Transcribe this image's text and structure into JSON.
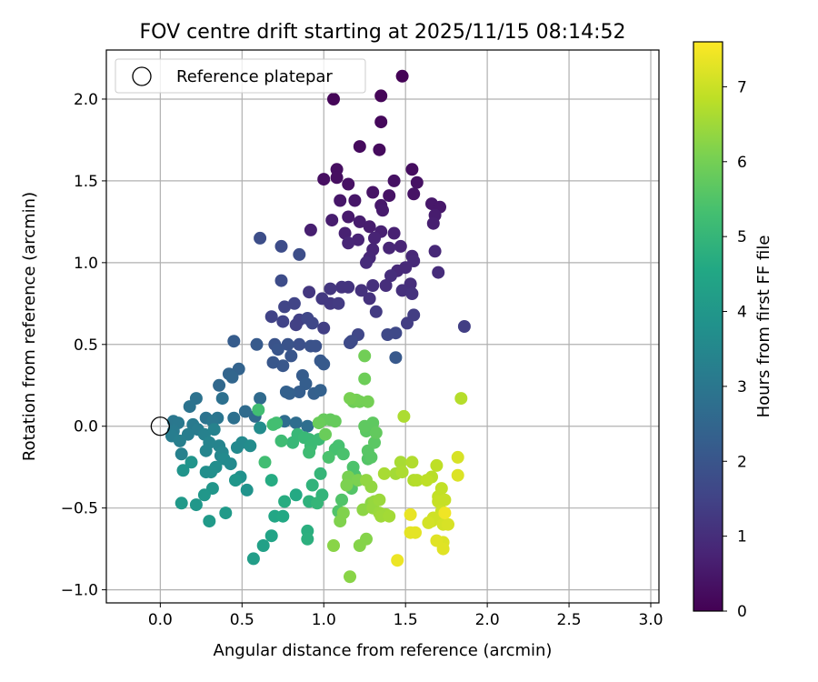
{
  "chart_data": {
    "type": "scatter",
    "title": "FOV centre drift starting at 2025/11/15 08:14:52",
    "xlabel": "Angular distance from reference (arcmin)",
    "ylabel": "Rotation from reference (arcmin)",
    "xlim": [
      -0.33,
      3.05
    ],
    "ylim": [
      -1.08,
      2.3
    ],
    "xticks": [
      0.0,
      0.5,
      1.0,
      1.5,
      2.0,
      2.5,
      3.0
    ],
    "xtick_labels": [
      "0.0",
      "0.5",
      "1.0",
      "1.5",
      "2.0",
      "2.5",
      "3.0"
    ],
    "yticks": [
      -1.0,
      -0.5,
      0.0,
      0.5,
      1.0,
      1.5,
      2.0
    ],
    "ytick_labels": [
      "−1.0",
      "−0.5",
      "0.0",
      "0.5",
      "1.0",
      "1.5",
      "2.0"
    ],
    "grid": true,
    "legend": {
      "position": "top-left",
      "entries": [
        "Reference platepar"
      ]
    },
    "reference_point": {
      "x": 0.0,
      "y": 0.0,
      "label": "Reference platepar"
    },
    "colorbar": {
      "label": "Hours from first FF file",
      "colormap": "viridis",
      "range": [
        0,
        7.6
      ],
      "ticks": [
        0,
        1,
        2,
        3,
        4,
        5,
        6,
        7
      ],
      "tick_labels": [
        "0",
        "1",
        "2",
        "3",
        "4",
        "5",
        "6",
        "7"
      ]
    },
    "points": [
      [
        1.48,
        2.14,
        0.05
      ],
      [
        1.06,
        2.0,
        0.1
      ],
      [
        1.35,
        2.02,
        0.1
      ],
      [
        1.35,
        1.86,
        0.15
      ],
      [
        1.34,
        1.69,
        0.2
      ],
      [
        1.22,
        1.71,
        0.2
      ],
      [
        1.54,
        1.57,
        0.25
      ],
      [
        1.08,
        1.57,
        0.3
      ],
      [
        1.0,
        1.51,
        0.3
      ],
      [
        1.08,
        1.52,
        0.3
      ],
      [
        1.15,
        1.48,
        0.35
      ],
      [
        1.43,
        1.5,
        0.35
      ],
      [
        1.57,
        1.49,
        0.35
      ],
      [
        1.3,
        1.43,
        0.4
      ],
      [
        1.4,
        1.41,
        0.4
      ],
      [
        1.55,
        1.42,
        0.4
      ],
      [
        1.1,
        1.38,
        0.45
      ],
      [
        1.19,
        1.38,
        0.45
      ],
      [
        1.35,
        1.35,
        0.5
      ],
      [
        1.66,
        1.36,
        0.5
      ],
      [
        1.71,
        1.34,
        0.5
      ],
      [
        1.36,
        1.32,
        0.55
      ],
      [
        1.15,
        1.28,
        0.55
      ],
      [
        1.05,
        1.26,
        0.6
      ],
      [
        1.22,
        1.25,
        0.6
      ],
      [
        1.28,
        1.22,
        0.6
      ],
      [
        1.68,
        1.29,
        0.6
      ],
      [
        1.67,
        1.24,
        0.65
      ],
      [
        0.92,
        1.2,
        0.65
      ],
      [
        1.13,
        1.18,
        0.7
      ],
      [
        1.35,
        1.19,
        0.7
      ],
      [
        1.43,
        1.18,
        0.7
      ],
      [
        1.31,
        1.15,
        0.75
      ],
      [
        1.47,
        1.1,
        0.75
      ],
      [
        1.21,
        1.14,
        0.75
      ],
      [
        1.15,
        1.12,
        0.8
      ],
      [
        1.3,
        1.08,
        0.8
      ],
      [
        1.4,
        1.09,
        0.8
      ],
      [
        1.54,
        1.04,
        0.85
      ],
      [
        1.68,
        1.07,
        0.85
      ],
      [
        1.28,
        1.03,
        0.85
      ],
      [
        1.55,
        1.01,
        0.9
      ],
      [
        1.45,
        0.95,
        0.9
      ],
      [
        1.5,
        0.97,
        0.9
      ],
      [
        1.7,
        0.94,
        0.95
      ],
      [
        1.26,
        1.0,
        0.95
      ],
      [
        1.41,
        0.92,
        1.0
      ],
      [
        1.53,
        0.87,
        1.0
      ],
      [
        1.38,
        0.86,
        1.0
      ],
      [
        1.3,
        0.86,
        1.05
      ],
      [
        1.48,
        0.83,
        1.05
      ],
      [
        1.54,
        0.81,
        1.1
      ],
      [
        1.23,
        0.83,
        1.1
      ],
      [
        1.28,
        0.78,
        1.1
      ],
      [
        1.11,
        0.85,
        1.15
      ],
      [
        1.15,
        0.85,
        1.15
      ],
      [
        1.04,
        0.84,
        1.2
      ],
      [
        0.91,
        0.82,
        1.2
      ],
      [
        0.99,
        0.78,
        1.25
      ],
      [
        1.04,
        0.75,
        1.25
      ],
      [
        1.09,
        0.75,
        1.3
      ],
      [
        1.32,
        0.7,
        1.3
      ],
      [
        1.55,
        0.68,
        1.35
      ],
      [
        1.51,
        0.63,
        1.35
      ],
      [
        1.86,
        0.61,
        1.4
      ],
      [
        1.0,
        0.6,
        1.4
      ],
      [
        0.85,
        0.65,
        1.45
      ],
      [
        0.83,
        0.62,
        1.45
      ],
      [
        0.75,
        0.64,
        1.5
      ],
      [
        0.68,
        0.67,
        1.5
      ],
      [
        0.76,
        0.73,
        1.55
      ],
      [
        0.82,
        0.75,
        1.55
      ],
      [
        0.9,
        0.66,
        1.6
      ],
      [
        0.93,
        0.63,
        1.6
      ],
      [
        1.21,
        0.56,
        1.6
      ],
      [
        1.39,
        0.56,
        1.65
      ],
      [
        1.44,
        0.57,
        1.65
      ],
      [
        1.17,
        0.52,
        1.7
      ],
      [
        1.16,
        0.51,
        1.7
      ],
      [
        0.74,
        0.89,
        1.75
      ],
      [
        0.74,
        1.1,
        1.75
      ],
      [
        0.85,
        1.05,
        1.8
      ],
      [
        0.61,
        1.15,
        1.8
      ],
      [
        0.85,
        0.5,
        1.85
      ],
      [
        0.92,
        0.49,
        1.9
      ],
      [
        0.95,
        0.49,
        1.9
      ],
      [
        0.78,
        0.5,
        1.95
      ],
      [
        0.7,
        0.5,
        1.95
      ],
      [
        0.72,
        0.47,
        2.0
      ],
      [
        0.8,
        0.43,
        2.0
      ],
      [
        0.69,
        0.39,
        2.05
      ],
      [
        0.75,
        0.37,
        2.05
      ],
      [
        0.98,
        0.4,
        2.1
      ],
      [
        1.44,
        0.42,
        2.1
      ],
      [
        1.0,
        0.38,
        2.15
      ],
      [
        0.59,
        0.5,
        2.15
      ],
      [
        0.45,
        0.52,
        2.2
      ],
      [
        0.87,
        0.31,
        2.2
      ],
      [
        0.89,
        0.26,
        2.25
      ],
      [
        0.85,
        0.21,
        2.25
      ],
      [
        0.79,
        0.2,
        2.3
      ],
      [
        0.94,
        0.2,
        2.3
      ],
      [
        0.98,
        0.22,
        2.35
      ],
      [
        0.77,
        0.21,
        2.35
      ],
      [
        0.48,
        0.35,
        2.4
      ],
      [
        0.42,
        0.32,
        2.45
      ],
      [
        0.44,
        0.3,
        2.5
      ],
      [
        0.36,
        0.25,
        2.55
      ],
      [
        0.61,
        0.17,
        2.6
      ],
      [
        0.58,
        0.06,
        2.6
      ],
      [
        0.52,
        0.09,
        2.65
      ],
      [
        0.76,
        0.03,
        2.7
      ],
      [
        0.83,
        0.02,
        2.7
      ],
      [
        0.9,
        0.0,
        2.75
      ],
      [
        0.45,
        0.05,
        2.8
      ],
      [
        0.38,
        0.17,
        2.8
      ],
      [
        0.22,
        0.17,
        2.85
      ],
      [
        0.18,
        0.12,
        2.9
      ],
      [
        0.28,
        0.05,
        2.9
      ],
      [
        0.35,
        0.05,
        2.95
      ],
      [
        0.32,
        0.03,
        3.0
      ],
      [
        0.08,
        0.03,
        3.0
      ],
      [
        0.11,
        0.02,
        3.05
      ],
      [
        0.08,
        -0.03,
        3.1
      ],
      [
        0.2,
        0.01,
        3.1
      ],
      [
        0.23,
        -0.02,
        3.15
      ],
      [
        0.17,
        -0.05,
        3.2
      ],
      [
        0.07,
        -0.06,
        3.2
      ],
      [
        0.12,
        -0.09,
        3.25
      ],
      [
        0.13,
        -0.17,
        3.3
      ],
      [
        0.27,
        -0.05,
        3.3
      ],
      [
        0.33,
        -0.02,
        3.35
      ],
      [
        0.3,
        -0.1,
        3.4
      ],
      [
        0.36,
        -0.12,
        3.4
      ],
      [
        0.28,
        -0.15,
        3.45
      ],
      [
        0.37,
        -0.18,
        3.45
      ],
      [
        0.38,
        -0.16,
        3.5
      ],
      [
        0.47,
        -0.13,
        3.55
      ],
      [
        0.5,
        -0.1,
        3.55
      ],
      [
        0.39,
        -0.2,
        3.6
      ],
      [
        0.43,
        -0.23,
        3.6
      ],
      [
        0.55,
        -0.12,
        3.65
      ],
      [
        0.61,
        -0.01,
        3.65
      ],
      [
        0.34,
        -0.25,
        3.7
      ],
      [
        0.28,
        -0.28,
        3.75
      ],
      [
        0.31,
        -0.28,
        3.75
      ],
      [
        0.46,
        -0.33,
        3.8
      ],
      [
        0.49,
        -0.31,
        3.8
      ],
      [
        0.53,
        -0.39,
        3.85
      ],
      [
        0.19,
        -0.22,
        3.9
      ],
      [
        0.14,
        -0.27,
        3.9
      ],
      [
        0.32,
        -0.38,
        3.95
      ],
      [
        0.46,
        -0.33,
        3.95
      ],
      [
        0.22,
        -0.48,
        4.0
      ],
      [
        0.27,
        -0.42,
        4.0
      ],
      [
        0.13,
        -0.47,
        4.05
      ],
      [
        0.4,
        -0.53,
        4.1
      ],
      [
        0.3,
        -0.58,
        4.1
      ],
      [
        0.57,
        -0.81,
        4.2
      ],
      [
        0.63,
        -0.73,
        4.3
      ],
      [
        0.68,
        -0.67,
        4.4
      ],
      [
        0.7,
        -0.55,
        4.5
      ],
      [
        0.75,
        -0.55,
        4.55
      ],
      [
        0.83,
        -0.42,
        4.6
      ],
      [
        0.68,
        -0.33,
        4.65
      ],
      [
        0.76,
        -0.46,
        4.7
      ],
      [
        0.9,
        -0.64,
        4.75
      ],
      [
        0.9,
        -0.69,
        4.8
      ],
      [
        0.91,
        -0.46,
        4.85
      ],
      [
        0.93,
        -0.36,
        4.9
      ],
      [
        0.99,
        -0.42,
        4.95
      ],
      [
        0.96,
        -0.47,
        5.0
      ],
      [
        0.98,
        -0.29,
        5.0
      ],
      [
        0.81,
        -0.1,
        5.05
      ],
      [
        0.84,
        -0.05,
        5.05
      ],
      [
        0.88,
        -0.07,
        5.1
      ],
      [
        0.91,
        -0.08,
        5.1
      ],
      [
        0.92,
        -0.12,
        5.15
      ],
      [
        0.97,
        -0.08,
        5.15
      ],
      [
        0.91,
        -0.16,
        5.2
      ],
      [
        0.74,
        -0.09,
        5.2
      ],
      [
        0.64,
        -0.22,
        5.25
      ],
      [
        0.6,
        0.1,
        5.25
      ],
      [
        0.69,
        0.01,
        5.3
      ],
      [
        0.71,
        0.02,
        5.3
      ],
      [
        1.07,
        -0.14,
        5.35
      ],
      [
        1.09,
        -0.12,
        5.35
      ],
      [
        1.12,
        -0.17,
        5.4
      ],
      [
        1.03,
        -0.19,
        5.4
      ],
      [
        1.18,
        -0.25,
        5.45
      ],
      [
        1.19,
        -0.3,
        5.45
      ],
      [
        1.09,
        -0.52,
        5.5
      ],
      [
        1.11,
        -0.45,
        5.5
      ],
      [
        1.17,
        -0.38,
        5.55
      ],
      [
        1.27,
        -0.2,
        5.55
      ],
      [
        1.27,
        -0.15,
        5.6
      ],
      [
        1.29,
        -0.19,
        5.6
      ],
      [
        1.31,
        -0.1,
        5.65
      ],
      [
        1.26,
        -0.03,
        5.65
      ],
      [
        1.25,
        0.0,
        5.7
      ],
      [
        1.3,
        0.02,
        5.7
      ],
      [
        1.32,
        -0.04,
        5.75
      ],
      [
        1.04,
        0.04,
        5.75
      ],
      [
        1.0,
        0.04,
        5.8
      ],
      [
        1.07,
        0.03,
        5.8
      ],
      [
        0.97,
        0.02,
        5.85
      ],
      [
        1.01,
        -0.05,
        5.85
      ],
      [
        1.18,
        0.15,
        5.9
      ],
      [
        1.25,
        0.29,
        5.9
      ],
      [
        1.25,
        0.43,
        5.95
      ],
      [
        1.22,
        0.15,
        5.95
      ],
      [
        1.2,
        0.16,
        6.0
      ],
      [
        1.27,
        0.15,
        6.0
      ],
      [
        1.16,
        0.17,
        6.05
      ],
      [
        1.15,
        -0.31,
        6.05
      ],
      [
        1.14,
        -0.36,
        6.1
      ],
      [
        1.21,
        -0.33,
        6.1
      ],
      [
        1.12,
        -0.53,
        6.15
      ],
      [
        1.1,
        -0.58,
        6.15
      ],
      [
        1.22,
        -0.73,
        6.2
      ],
      [
        1.26,
        -0.69,
        6.2
      ],
      [
        1.16,
        -0.92,
        6.25
      ],
      [
        1.06,
        -0.73,
        6.25
      ],
      [
        1.24,
        -0.51,
        6.3
      ],
      [
        1.29,
        -0.47,
        6.3
      ],
      [
        1.29,
        -0.37,
        6.35
      ],
      [
        1.26,
        -0.33,
        6.35
      ],
      [
        1.31,
        -0.46,
        6.4
      ],
      [
        1.3,
        -0.5,
        6.4
      ],
      [
        1.34,
        -0.53,
        6.45
      ],
      [
        1.34,
        -0.45,
        6.45
      ],
      [
        1.38,
        -0.54,
        6.5
      ],
      [
        1.35,
        -0.55,
        6.5
      ],
      [
        1.4,
        -0.55,
        6.55
      ],
      [
        1.44,
        -0.29,
        6.55
      ],
      [
        1.37,
        -0.29,
        6.6
      ],
      [
        1.47,
        -0.22,
        6.6
      ],
      [
        1.48,
        -0.28,
        6.65
      ],
      [
        1.49,
        0.06,
        6.65
      ],
      [
        1.54,
        -0.22,
        6.7
      ],
      [
        1.55,
        -0.33,
        6.7
      ],
      [
        1.84,
        0.17,
        6.75
      ],
      [
        1.57,
        -0.33,
        6.75
      ],
      [
        1.66,
        -0.31,
        6.8
      ],
      [
        1.63,
        -0.33,
        6.85
      ],
      [
        1.69,
        -0.24,
        6.85
      ],
      [
        1.72,
        -0.38,
        6.9
      ],
      [
        1.7,
        -0.43,
        6.9
      ],
      [
        1.74,
        -0.45,
        6.95
      ],
      [
        1.7,
        -0.46,
        6.95
      ],
      [
        1.72,
        -0.52,
        7.0
      ],
      [
        1.71,
        -0.55,
        7.0
      ],
      [
        1.67,
        -0.56,
        7.05
      ],
      [
        1.66,
        -0.58,
        7.05
      ],
      [
        1.64,
        -0.59,
        7.1
      ],
      [
        1.73,
        -0.6,
        7.1
      ],
      [
        1.76,
        -0.6,
        7.15
      ],
      [
        1.82,
        -0.19,
        7.15
      ],
      [
        1.82,
        -0.3,
        7.2
      ],
      [
        1.73,
        -0.71,
        7.2
      ],
      [
        1.73,
        -0.75,
        7.25
      ],
      [
        1.69,
        -0.7,
        7.25
      ],
      [
        1.53,
        -0.65,
        7.3
      ],
      [
        1.56,
        -0.65,
        7.3
      ],
      [
        1.53,
        -0.54,
        7.35
      ],
      [
        1.45,
        -0.82,
        7.4
      ],
      [
        1.74,
        -0.53,
        7.45
      ]
    ]
  }
}
